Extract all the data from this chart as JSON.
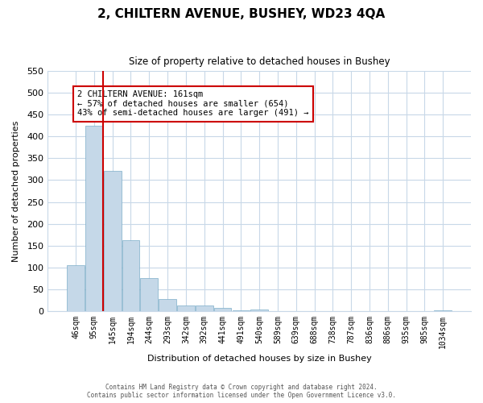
{
  "title": "2, CHILTERN AVENUE, BUSHEY, WD23 4QA",
  "subtitle": "Size of property relative to detached houses in Bushey",
  "xlabel": "Distribution of detached houses by size in Bushey",
  "ylabel": "Number of detached properties",
  "bar_labels": [
    "46sqm",
    "95sqm",
    "145sqm",
    "194sqm",
    "244sqm",
    "293sqm",
    "342sqm",
    "392sqm",
    "441sqm",
    "491sqm",
    "540sqm",
    "589sqm",
    "639sqm",
    "688sqm",
    "738sqm",
    "787sqm",
    "836sqm",
    "886sqm",
    "935sqm",
    "985sqm",
    "1034sqm"
  ],
  "bar_values": [
    105,
    425,
    322,
    162,
    75,
    27,
    13,
    13,
    7,
    2,
    3,
    0,
    0,
    0,
    0,
    0,
    0,
    0,
    0,
    0,
    2
  ],
  "bar_color": "#c5d8e8",
  "bar_edge_color": "#7daec8",
  "property_line_x": 161,
  "property_line_bin": 2,
  "annotation_title": "2 CHILTERN AVENUE: 161sqm",
  "annotation_line1": "← 57% of detached houses are smaller (654)",
  "annotation_line2": "43% of semi-detached houses are larger (491) →",
  "annotation_box_color": "#ff0000",
  "ylim": [
    0,
    550
  ],
  "yticks": [
    0,
    50,
    100,
    150,
    200,
    250,
    300,
    350,
    400,
    450,
    500,
    550
  ],
  "footer1": "Contains HM Land Registry data © Crown copyright and database right 2024.",
  "footer2": "Contains public sector information licensed under the Open Government Licence v3.0.",
  "background_color": "#ffffff",
  "grid_color": "#c8d8e8",
  "bin_width": 49
}
